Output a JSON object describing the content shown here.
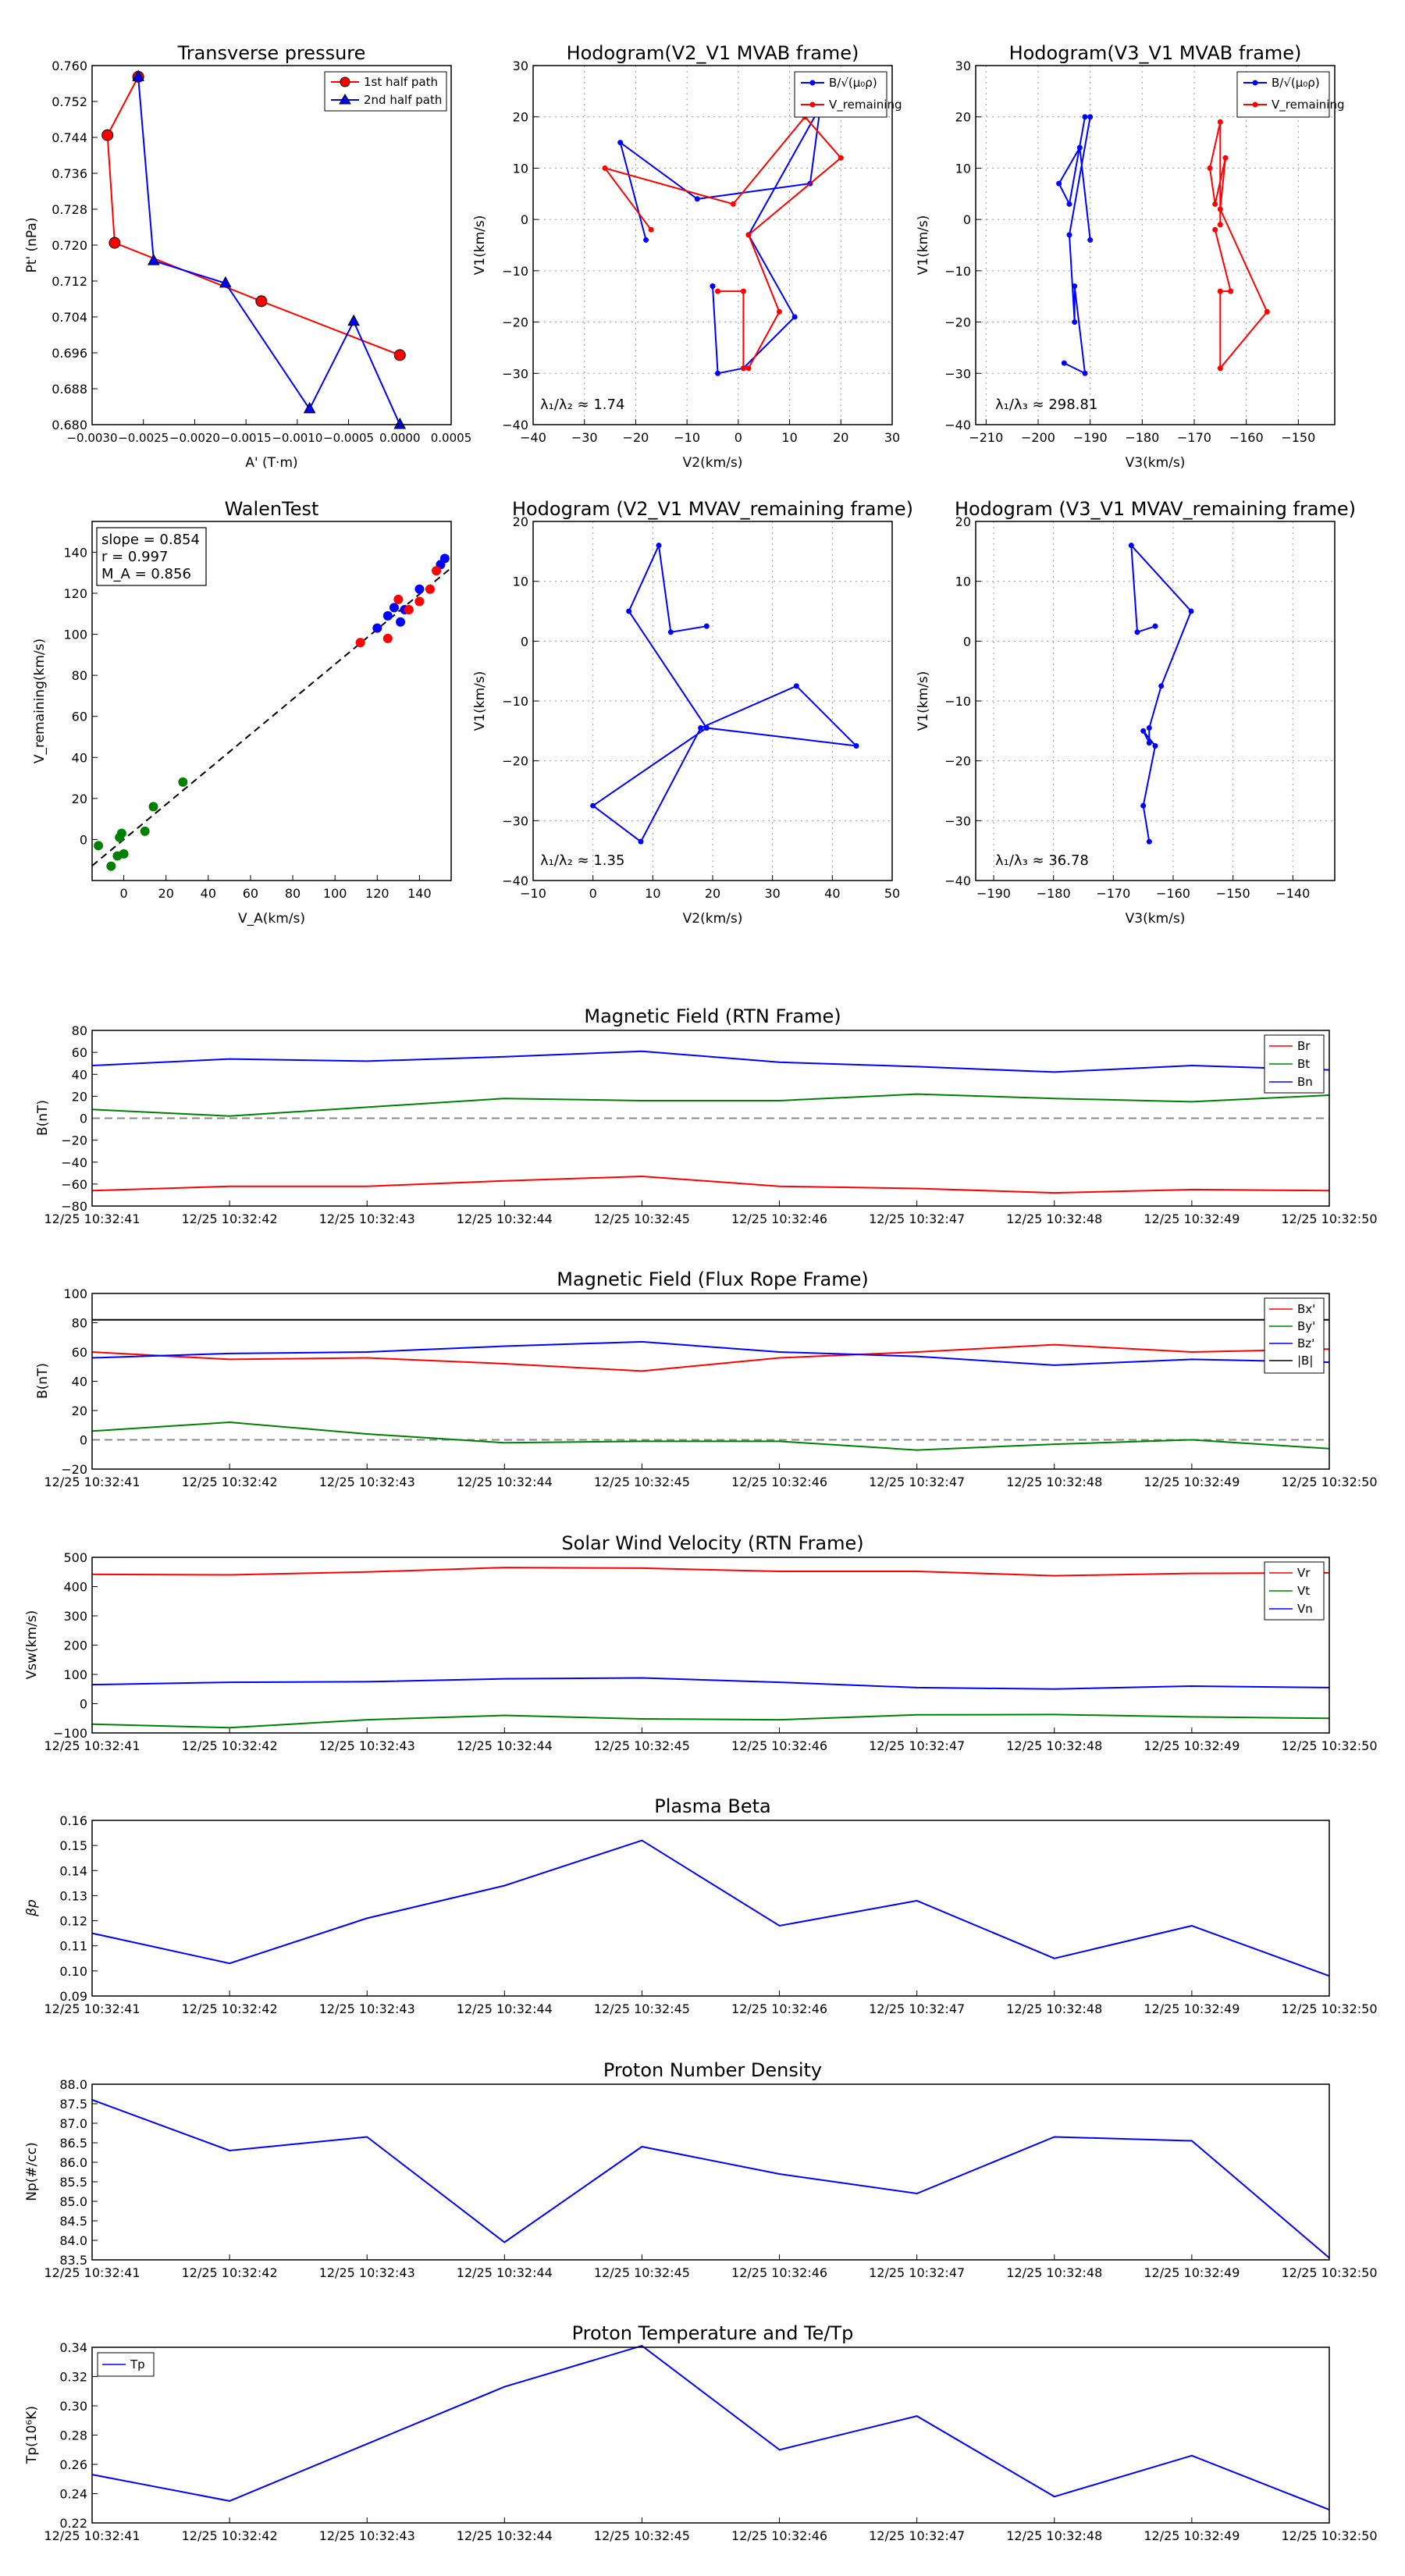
{
  "chart_data": [
    {
      "id": "tp",
      "type": "scatter",
      "title": "Transverse pressure",
      "xlabel": "A' (T·m)",
      "ylabel": "Pt' (nPa)",
      "xlim": [
        -0.003,
        0.0005
      ],
      "ylim": [
        0.68,
        0.76
      ],
      "xticks": [
        -0.003,
        -0.0025,
        -0.002,
        -0.0015,
        -0.001,
        -0.0005,
        0,
        0.0005
      ],
      "xtick_labels": [
        "−0.0030",
        "−0.0025",
        "−0.0020",
        "−0.0015",
        "−0.0010",
        "−0.0005",
        "0.0000",
        "0.0005"
      ],
      "yticks": [
        0.68,
        0.688,
        0.696,
        0.704,
        0.712,
        0.72,
        0.728,
        0.736,
        0.744,
        0.752,
        0.76
      ],
      "ytick_labels": [
        "0.680",
        "0.688",
        "0.696",
        "0.704",
        "0.712",
        "0.720",
        "0.728",
        "0.736",
        "0.744",
        "0.752",
        "0.760"
      ],
      "legend": {
        "position": "top-right",
        "entries": [
          "1st half path",
          "2nd half path"
        ]
      },
      "series": [
        {
          "name": "1st half path",
          "color": "#ff0000",
          "marker": "circle",
          "x": [
            -0.00255,
            -0.00285,
            -0.00278,
            -0.00135,
            0.0
          ],
          "y": [
            0.7575,
            0.7445,
            0.7205,
            0.7075,
            0.6955
          ]
        },
        {
          "name": "2nd half path",
          "color": "#0000ff",
          "marker": "triangle",
          "x": [
            -0.00255,
            -0.0024,
            -0.0017,
            -0.00088,
            -0.00045,
            0.0
          ],
          "y": [
            0.7575,
            0.7165,
            0.7115,
            0.6835,
            0.703,
            0.68
          ]
        }
      ]
    },
    {
      "id": "h1",
      "type": "line",
      "title": "Hodogram(V2_V1 MVAB frame)",
      "xlabel": "V2(km/s)",
      "ylabel": "V1(km/s)",
      "xlim": [
        -40,
        30
      ],
      "ylim": [
        -40,
        30
      ],
      "xticks": [
        -40,
        -30,
        -20,
        -10,
        0,
        10,
        20,
        30
      ],
      "yticks": [
        -40,
        -30,
        -20,
        -10,
        0,
        10,
        20,
        30
      ],
      "annotation": "λ₁/λ₂ ≈ 1.74",
      "legend": {
        "position": "top-right",
        "entries": [
          "B/√(μ₀ρ)",
          "V_remaining"
        ]
      },
      "series": [
        {
          "name": "B/√(μ₀ρ)",
          "color": "#0000ff",
          "x": [
            -18,
            -23,
            -8,
            14,
            16,
            2,
            11,
            1,
            -4,
            -5,
            -5
          ],
          "y": [
            -4,
            15,
            4,
            7,
            22,
            -3,
            -19,
            -29,
            -30,
            -13,
            -13
          ]
        },
        {
          "name": "V_remaining",
          "color": "#ff0000",
          "x": [
            -17,
            -26,
            -1,
            13,
            20,
            2,
            8,
            2,
            1,
            1,
            -4
          ],
          "y": [
            -2,
            10,
            3,
            20,
            12,
            -3,
            -18,
            -29,
            -29,
            -14,
            -14
          ]
        }
      ]
    },
    {
      "id": "h2",
      "type": "line",
      "title": "Hodogram(V3_V1 MVAB frame)",
      "xlabel": "V3(km/s)",
      "ylabel": "V1(km/s)",
      "xlim": [
        -212,
        -143
      ],
      "ylim": [
        -40,
        30
      ],
      "xticks": [
        -210,
        -200,
        -190,
        -180,
        -170,
        -160,
        -150
      ],
      "yticks": [
        -40,
        -30,
        -20,
        -10,
        0,
        10,
        20,
        30
      ],
      "annotation": "λ₁/λ₃ ≈ 298.81",
      "legend": {
        "position": "top-right",
        "entries": [
          "B/√(μ₀ρ)",
          "V_remaining"
        ]
      },
      "series": [
        {
          "name": "B/√(μ₀ρ)",
          "color": "#0000ff",
          "x": [
            -190,
            -192,
            -196,
            -194,
            -191,
            -190,
            -194,
            -193,
            -193,
            -191,
            -195
          ],
          "y": [
            -4,
            14,
            7,
            3,
            20,
            20,
            -3,
            -20,
            -13,
            -30,
            -28
          ]
        },
        {
          "name": "V_remaining",
          "color": "#ff0000",
          "x": [
            -165,
            -165,
            -167,
            -166,
            -164,
            -165,
            -156,
            -165,
            -165,
            -163,
            -166
          ],
          "y": [
            -1,
            19,
            10,
            3,
            12,
            2,
            -18,
            -29,
            -14,
            -14,
            -2
          ]
        }
      ]
    },
    {
      "id": "wt",
      "type": "scatter",
      "title": "WalenTest",
      "xlabel": "V_A(km/s)",
      "ylabel": "V_remaining(km/s)",
      "xlim": [
        -15,
        155
      ],
      "ylim": [
        -20,
        155
      ],
      "xticks": [
        0,
        20,
        40,
        60,
        80,
        100,
        120,
        140
      ],
      "yticks": [
        0,
        20,
        40,
        60,
        80,
        100,
        120,
        140
      ],
      "annotation_lines": [
        "slope = 0.854",
        "r = 0.997",
        "M_A = 0.856"
      ],
      "fit_line": {
        "slope": 0.854,
        "intercept": 0.0
      },
      "series": [
        {
          "name": "green",
          "color": "#008000",
          "x": [
            -12,
            -6,
            -3,
            -2,
            -1,
            0,
            10,
            14,
            28
          ],
          "y": [
            -3,
            -13,
            -8,
            1,
            3,
            -7,
            4,
            16,
            28
          ]
        },
        {
          "name": "blue",
          "color": "#0000ff",
          "x": [
            120,
            125,
            128,
            131,
            133,
            140,
            150,
            152
          ],
          "y": [
            103,
            109,
            113,
            106,
            112,
            122,
            134,
            137
          ]
        },
        {
          "name": "red",
          "color": "#ff0000",
          "x": [
            112,
            125,
            130,
            135,
            140,
            145,
            148
          ],
          "y": [
            96,
            98,
            117,
            112,
            116,
            122,
            131
          ]
        }
      ]
    },
    {
      "id": "h3",
      "type": "line",
      "title": "Hodogram (V2_V1 MVAV_remaining frame)",
      "xlabel": "V2(km/s)",
      "ylabel": "V1(km/s)",
      "xlim": [
        -10,
        50
      ],
      "ylim": [
        -40,
        20
      ],
      "xticks": [
        -10,
        0,
        10,
        20,
        30,
        40,
        50
      ],
      "yticks": [
        -40,
        -30,
        -20,
        -10,
        0,
        10,
        20
      ],
      "annotation": "λ₁/λ₂ ≈ 1.35",
      "series": [
        {
          "name": "V_remaining",
          "color": "#0000ff",
          "x": [
            19,
            13,
            11,
            6,
            19,
            44,
            34,
            18,
            8,
            0,
            19
          ],
          "y": [
            2.5,
            1.5,
            16,
            5,
            -14.5,
            -17.5,
            -7.5,
            -14.5,
            -33.5,
            -27.5,
            -14.5
          ]
        }
      ]
    },
    {
      "id": "h4",
      "type": "line",
      "title": "Hodogram (V3_V1 MVAV_remaining frame)",
      "xlabel": "V3(km/s)",
      "ylabel": "V1(km/s)",
      "xlim": [
        -193,
        -133
      ],
      "ylim": [
        -40,
        20
      ],
      "xticks": [
        -190,
        -180,
        -170,
        -160,
        -150,
        -140
      ],
      "yticks": [
        -40,
        -30,
        -20,
        -10,
        0,
        10,
        20
      ],
      "annotation": "λ₁/λ₃ ≈ 36.78",
      "series": [
        {
          "name": "V_remaining",
          "color": "#0000ff",
          "x": [
            -163,
            -166,
            -167,
            -157,
            -162,
            -164,
            -164,
            -165,
            -163,
            -165,
            -164
          ],
          "y": [
            2.5,
            1.5,
            16,
            5,
            -7.5,
            -14.5,
            -17,
            -15,
            -17.5,
            -27.5,
            -33.5
          ]
        }
      ]
    },
    {
      "id": "mf_rtn",
      "type": "line",
      "title": "Magnetic Field (RTN Frame)",
      "xlabel": "",
      "ylabel": "B(nT)",
      "ylim": [
        -80,
        80
      ],
      "yticks": [
        -80,
        -60,
        -40,
        -20,
        0,
        20,
        40,
        60,
        80
      ],
      "zero_line": true,
      "legend": {
        "position": "top-right",
        "entries": [
          "Br",
          "Bt",
          "Bn"
        ]
      },
      "series": [
        {
          "name": "Br",
          "color": "#ff0000",
          "values": [
            -66,
            -62,
            -62,
            -57,
            -53,
            -62,
            -64,
            -68,
            -65,
            -66
          ]
        },
        {
          "name": "Bt",
          "color": "#008000",
          "values": [
            8,
            2,
            10,
            18,
            16,
            16,
            22,
            18,
            15,
            21
          ]
        },
        {
          "name": "Bn",
          "color": "#0000ff",
          "values": [
            48,
            54,
            52,
            56,
            61,
            51,
            47,
            42,
            48,
            44
          ]
        }
      ]
    },
    {
      "id": "mf_fr",
      "type": "line",
      "title": "Magnetic Field (Flux Rope Frame)",
      "xlabel": "",
      "ylabel": "B(nT)",
      "ylim": [
        -20,
        100
      ],
      "yticks": [
        -20,
        0,
        20,
        40,
        60,
        80,
        100
      ],
      "zero_line": true,
      "legend": {
        "position": "top-right",
        "entries": [
          "Bx'",
          "By'",
          "Bz'",
          "|B|"
        ]
      },
      "series": [
        {
          "name": "Bx'",
          "color": "#ff0000",
          "values": [
            60,
            55,
            56,
            52,
            47,
            56,
            60,
            65,
            60,
            62
          ]
        },
        {
          "name": "By'",
          "color": "#008000",
          "values": [
            6,
            12,
            4,
            -2,
            -1,
            -1,
            -7,
            -3,
            0,
            -6
          ]
        },
        {
          "name": "Bz'",
          "color": "#0000ff",
          "values": [
            56,
            59,
            60,
            64,
            67,
            60,
            57,
            51,
            55,
            53
          ]
        },
        {
          "name": "|B|",
          "color": "#000000",
          "values": [
            82,
            82,
            82,
            82,
            82,
            82,
            82,
            82,
            82,
            82
          ]
        }
      ]
    },
    {
      "id": "sw",
      "type": "line",
      "title": "Solar Wind Velocity (RTN Frame)",
      "xlabel": "",
      "ylabel": "Vsw(km/s)",
      "ylim": [
        -100,
        500
      ],
      "yticks": [
        -100,
        0,
        100,
        200,
        300,
        400,
        500
      ],
      "legend": {
        "position": "top-right",
        "entries": [
          "Vr",
          "Vt",
          "Vn"
        ]
      },
      "series": [
        {
          "name": "Vr",
          "color": "#ff0000",
          "values": [
            442,
            440,
            450,
            465,
            463,
            452,
            452,
            437,
            445,
            447
          ]
        },
        {
          "name": "Vt",
          "color": "#008000",
          "values": [
            -70,
            -82,
            -55,
            -40,
            -52,
            -55,
            -38,
            -37,
            -45,
            -50
          ]
        },
        {
          "name": "Vn",
          "color": "#0000ff",
          "values": [
            65,
            73,
            75,
            85,
            88,
            73,
            55,
            50,
            60,
            55
          ]
        }
      ]
    },
    {
      "id": "beta",
      "type": "line",
      "title": "Plasma Beta",
      "xlabel": "",
      "ylabel": "βp",
      "ylim": [
        0.09,
        0.16
      ],
      "yticks": [
        0.09,
        0.1,
        0.11,
        0.12,
        0.13,
        0.14,
        0.15,
        0.16
      ],
      "ytick_labels": [
        "0.09",
        "0.10",
        "0.11",
        "0.12",
        "0.13",
        "0.14",
        "0.15",
        "0.16"
      ],
      "series": [
        {
          "name": "beta",
          "color": "#0000ff",
          "values": [
            0.115,
            0.103,
            0.121,
            0.134,
            0.152,
            0.118,
            0.128,
            0.105,
            0.118,
            0.098
          ]
        }
      ]
    },
    {
      "id": "np",
      "type": "line",
      "title": "Proton Number Density",
      "xlabel": "",
      "ylabel": "Np(#/cc)",
      "ylim": [
        83.5,
        88.0
      ],
      "yticks": [
        83.5,
        84.0,
        84.5,
        85.0,
        85.5,
        86.0,
        86.5,
        87.0,
        87.5,
        88.0
      ],
      "ytick_labels": [
        "83.5",
        "84.0",
        "84.5",
        "85.0",
        "85.5",
        "86.0",
        "86.5",
        "87.0",
        "87.5",
        "88.0"
      ],
      "series": [
        {
          "name": "Np",
          "color": "#0000ff",
          "values": [
            87.6,
            86.3,
            86.65,
            83.95,
            86.4,
            85.7,
            85.2,
            86.65,
            86.55,
            83.55
          ]
        }
      ]
    },
    {
      "id": "tpr",
      "type": "line",
      "title": "Proton Temperature and Te/Tp",
      "xlabel": "",
      "ylabel": "Tp(10⁶K)",
      "ylim": [
        0.22,
        0.34
      ],
      "yticks": [
        0.22,
        0.24,
        0.26,
        0.28,
        0.3,
        0.32,
        0.34
      ],
      "ytick_labels": [
        "0.22",
        "0.24",
        "0.26",
        "0.28",
        "0.30",
        "0.32",
        "0.34"
      ],
      "legend": {
        "position": "top-left",
        "entries": [
          "Tp"
        ]
      },
      "series": [
        {
          "name": "Tp",
          "color": "#0000ff",
          "values": [
            0.253,
            0.235,
            0.274,
            0.313,
            0.341,
            0.27,
            0.293,
            0.238,
            0.266,
            0.229
          ]
        }
      ]
    }
  ],
  "time_labels": [
    "12/25 10:32:41",
    "12/25 10:32:42",
    "12/25 10:32:43",
    "12/25 10:32:44",
    "12/25 10:32:45",
    "12/25 10:32:46",
    "12/25 10:32:47",
    "12/25 10:32:48",
    "12/25 10:32:49",
    "12/25 10:32:50"
  ]
}
